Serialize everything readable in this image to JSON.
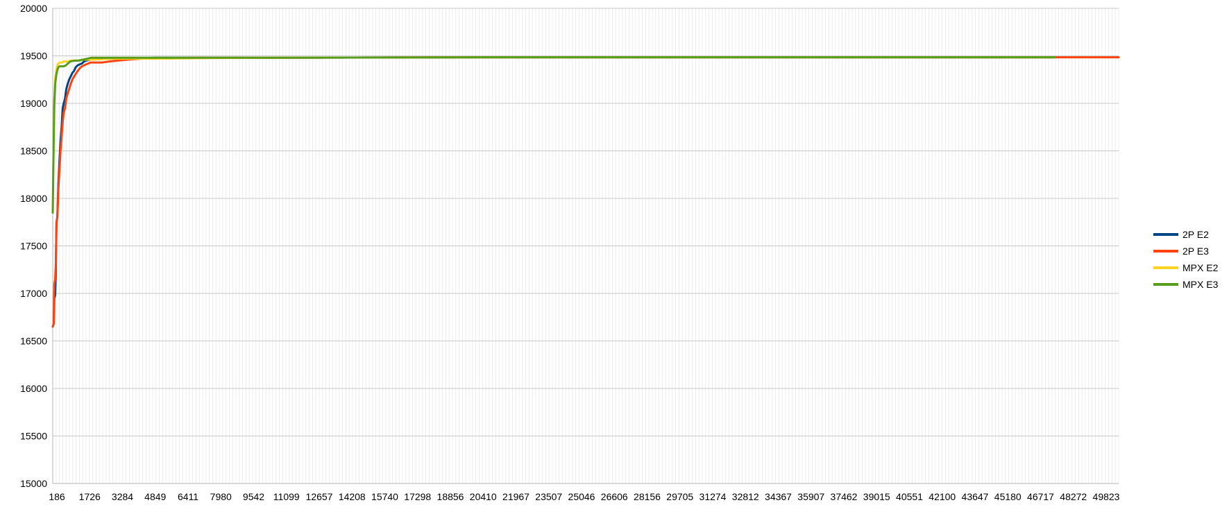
{
  "chart_data": {
    "type": "line",
    "title": "",
    "xlabel": "",
    "ylabel": "",
    "ylim": [
      15000,
      20000
    ],
    "y_ticks": [
      "15000",
      "15500",
      "16000",
      "16500",
      "17000",
      "17500",
      "18000",
      "18500",
      "19000",
      "19500",
      "20000"
    ],
    "x_tick_labels": [
      "186",
      "1726",
      "3284",
      "4849",
      "6411",
      "7980",
      "9542",
      "11099",
      "12657",
      "14208",
      "15740",
      "17298",
      "18856",
      "20410",
      "21967",
      "23507",
      "25046",
      "26606",
      "28156",
      "29705",
      "31274",
      "32812",
      "34367",
      "35907",
      "37462",
      "39015",
      "40551",
      "42100",
      "43647",
      "45180",
      "46717",
      "48272",
      "49823"
    ],
    "xlim": [
      186,
      50000
    ],
    "grid": true,
    "legend_position": "right",
    "series": [
      {
        "name": "2P E2",
        "color": "#004586",
        "x": [
          186,
          230,
          260,
          300,
          330,
          360,
          400,
          450,
          500,
          550,
          600,
          650,
          700,
          760,
          820,
          880,
          950,
          1020,
          1100,
          1180,
          1260,
          1350,
          1450,
          1550,
          1650,
          1750,
          1850,
          1950,
          2100,
          2300,
          2500,
          2800,
          3200,
          3700,
          4300,
          5000,
          7000,
          10000,
          20000,
          30000,
          40000,
          47000
        ],
        "y": [
          16650,
          16680,
          16950,
          16980,
          17200,
          17750,
          17800,
          18150,
          18400,
          18600,
          18750,
          18950,
          19000,
          19050,
          19150,
          19200,
          19250,
          19280,
          19320,
          19340,
          19380,
          19400,
          19410,
          19420,
          19440,
          19450,
          19455,
          19460,
          19465,
          19470,
          19470,
          19470,
          19470,
          19475,
          19475,
          19480,
          19480,
          19480,
          19485,
          19485,
          19485,
          19485
        ]
      },
      {
        "name": "2P E3",
        "color": "#ff420e",
        "x": [
          186,
          230,
          260,
          300,
          330,
          360,
          400,
          450,
          500,
          550,
          600,
          650,
          700,
          760,
          820,
          880,
          950,
          1020,
          1100,
          1180,
          1260,
          1350,
          1450,
          1550,
          1650,
          1750,
          1850,
          1950,
          2100,
          2300,
          2500,
          2800,
          3200,
          3700,
          4300,
          5000,
          7000,
          10000,
          20000,
          30000,
          40000,
          50000
        ],
        "y": [
          16650,
          16680,
          17100,
          17150,
          17300,
          17750,
          17800,
          18100,
          18300,
          18500,
          18650,
          18800,
          18900,
          18950,
          19050,
          19100,
          19150,
          19200,
          19250,
          19280,
          19310,
          19340,
          19370,
          19390,
          19400,
          19410,
          19420,
          19430,
          19430,
          19430,
          19430,
          19440,
          19450,
          19460,
          19470,
          19475,
          19480,
          19480,
          19485,
          19485,
          19485,
          19485
        ]
      },
      {
        "name": "MPX E2",
        "color": "#ffd320",
        "x": [
          186,
          230,
          260,
          300,
          350,
          400,
          450,
          500,
          600,
          700,
          800,
          900,
          1000,
          1200,
          1400,
          1600,
          1800,
          2000,
          2500,
          3000,
          4000,
          5000,
          7000,
          10000,
          20000,
          30000,
          40000,
          47000
        ],
        "y": [
          17850,
          18700,
          19050,
          19250,
          19350,
          19400,
          19420,
          19430,
          19430,
          19440,
          19440,
          19440,
          19450,
          19450,
          19450,
          19460,
          19460,
          19460,
          19465,
          19470,
          19470,
          19470,
          19475,
          19480,
          19485,
          19485,
          19485,
          19485
        ]
      },
      {
        "name": "MPX E3",
        "color": "#579d1c",
        "x": [
          186,
          230,
          260,
          300,
          350,
          400,
          450,
          500,
          600,
          700,
          800,
          900,
          1000,
          1200,
          1400,
          1600,
          1800,
          2000,
          2500,
          3000,
          4000,
          5000,
          7000,
          10000,
          20000,
          30000,
          40000,
          47000
        ],
        "y": [
          17850,
          18600,
          19000,
          19200,
          19300,
          19350,
          19380,
          19390,
          19390,
          19390,
          19400,
          19420,
          19440,
          19450,
          19450,
          19460,
          19470,
          19480,
          19480,
          19480,
          19480,
          19480,
          19480,
          19480,
          19485,
          19485,
          19485,
          19485
        ]
      }
    ]
  }
}
